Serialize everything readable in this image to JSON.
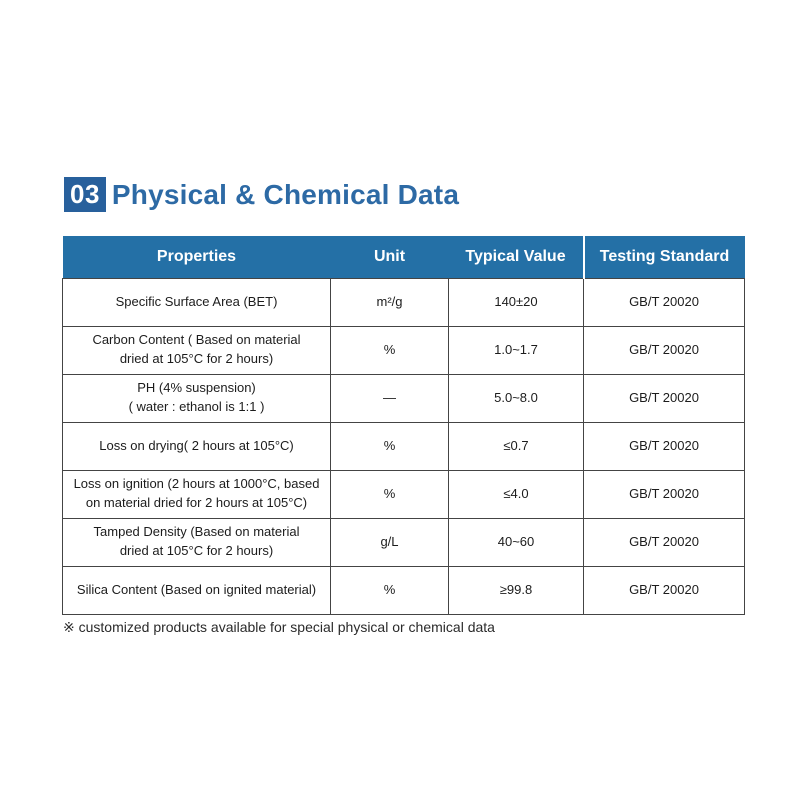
{
  "colors": {
    "badge_bg": "#28609c",
    "title_text": "#2d6aa5",
    "header_bg": "#2470a6",
    "header_text": "#ffffff",
    "table_border": "#444444",
    "body_text": "#1c1c1c"
  },
  "section": {
    "number": "03",
    "title": "Physical & Chemical Data"
  },
  "table": {
    "columns": [
      "Properties",
      "Unit",
      "Typical Value",
      "Testing Standard"
    ],
    "rows": [
      {
        "property": "Specific Surface Area (BET)",
        "unit": "m²/g",
        "typical_value": "140±20",
        "standard": "GB/T 20020"
      },
      {
        "property": "Carbon Content ( Based on material\ndried at 105°C for 2 hours)",
        "unit": "%",
        "typical_value": "1.0~1.7",
        "standard": "GB/T 20020"
      },
      {
        "property": "PH (4% suspension)\n( water : ethanol is 1:1 )",
        "unit": "—",
        "typical_value": "5.0~8.0",
        "standard": "GB/T 20020"
      },
      {
        "property": "Loss on drying( 2 hours at 105°C)",
        "unit": "%",
        "typical_value": "≤0.7",
        "standard": "GB/T 20020"
      },
      {
        "property": "Loss on ignition (2 hours at 1000°C, based\non material dried for 2 hours at 105°C)",
        "unit": "%",
        "typical_value": "≤4.0",
        "standard": "GB/T 20020"
      },
      {
        "property": "Tamped Density (Based on material\ndried at 105°C for 2 hours)",
        "unit": "g/L",
        "typical_value": "40~60",
        "standard": "GB/T 20020"
      },
      {
        "property": "Silica Content (Based on ignited material)",
        "unit": "%",
        "typical_value": "≥99.8",
        "standard": "GB/T 20020"
      }
    ]
  },
  "footnote": {
    "text": "※ customized products available for special physical or chemical data"
  }
}
